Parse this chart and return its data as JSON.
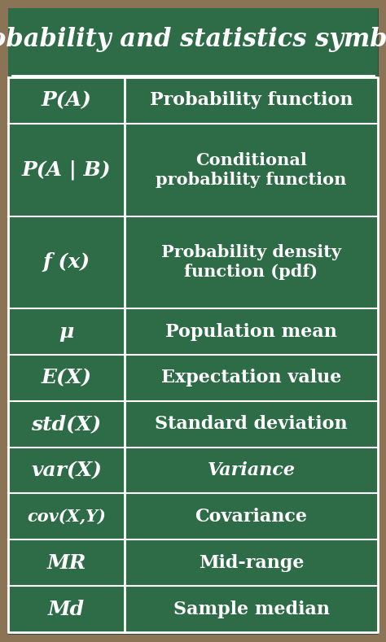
{
  "title": "Probability and statistics symbols",
  "bg_color": "#2e6b47",
  "dark_bg": "#1e3d28",
  "border_color": "#8B7355",
  "line_color": "#ffffff",
  "text_color": "#ffffff",
  "rows": [
    {
      "symbol": "P(A)",
      "description": "Probability function",
      "nlines": 1
    },
    {
      "symbol": "P(A | B)",
      "description": "Conditional\nprobability function",
      "nlines": 2
    },
    {
      "symbol": "f (x)",
      "description": "Probability density\nfunction (pdf)",
      "nlines": 2
    },
    {
      "symbol": "μ",
      "description": "Population mean",
      "nlines": 1
    },
    {
      "symbol": "E(X)",
      "description": "Expectation value",
      "nlines": 1
    },
    {
      "symbol": "std(X)",
      "description": "Standard deviation",
      "nlines": 1
    },
    {
      "symbol": "var(X)",
      "description": "Variance",
      "nlines": 1
    },
    {
      "symbol": "cov(X,Y)",
      "description": "Covariance",
      "nlines": 1
    },
    {
      "symbol": "MR",
      "description": "Mid-range",
      "nlines": 1
    },
    {
      "symbol": "Md",
      "description": "Sample median",
      "nlines": 1
    }
  ],
  "col_split": 0.315,
  "title_font_size": 22,
  "sym_font_size": 18,
  "desc_font_size": 16,
  "desc_font_size_2": 15,
  "figsize": [
    4.74,
    7.89
  ],
  "dpi": 100
}
